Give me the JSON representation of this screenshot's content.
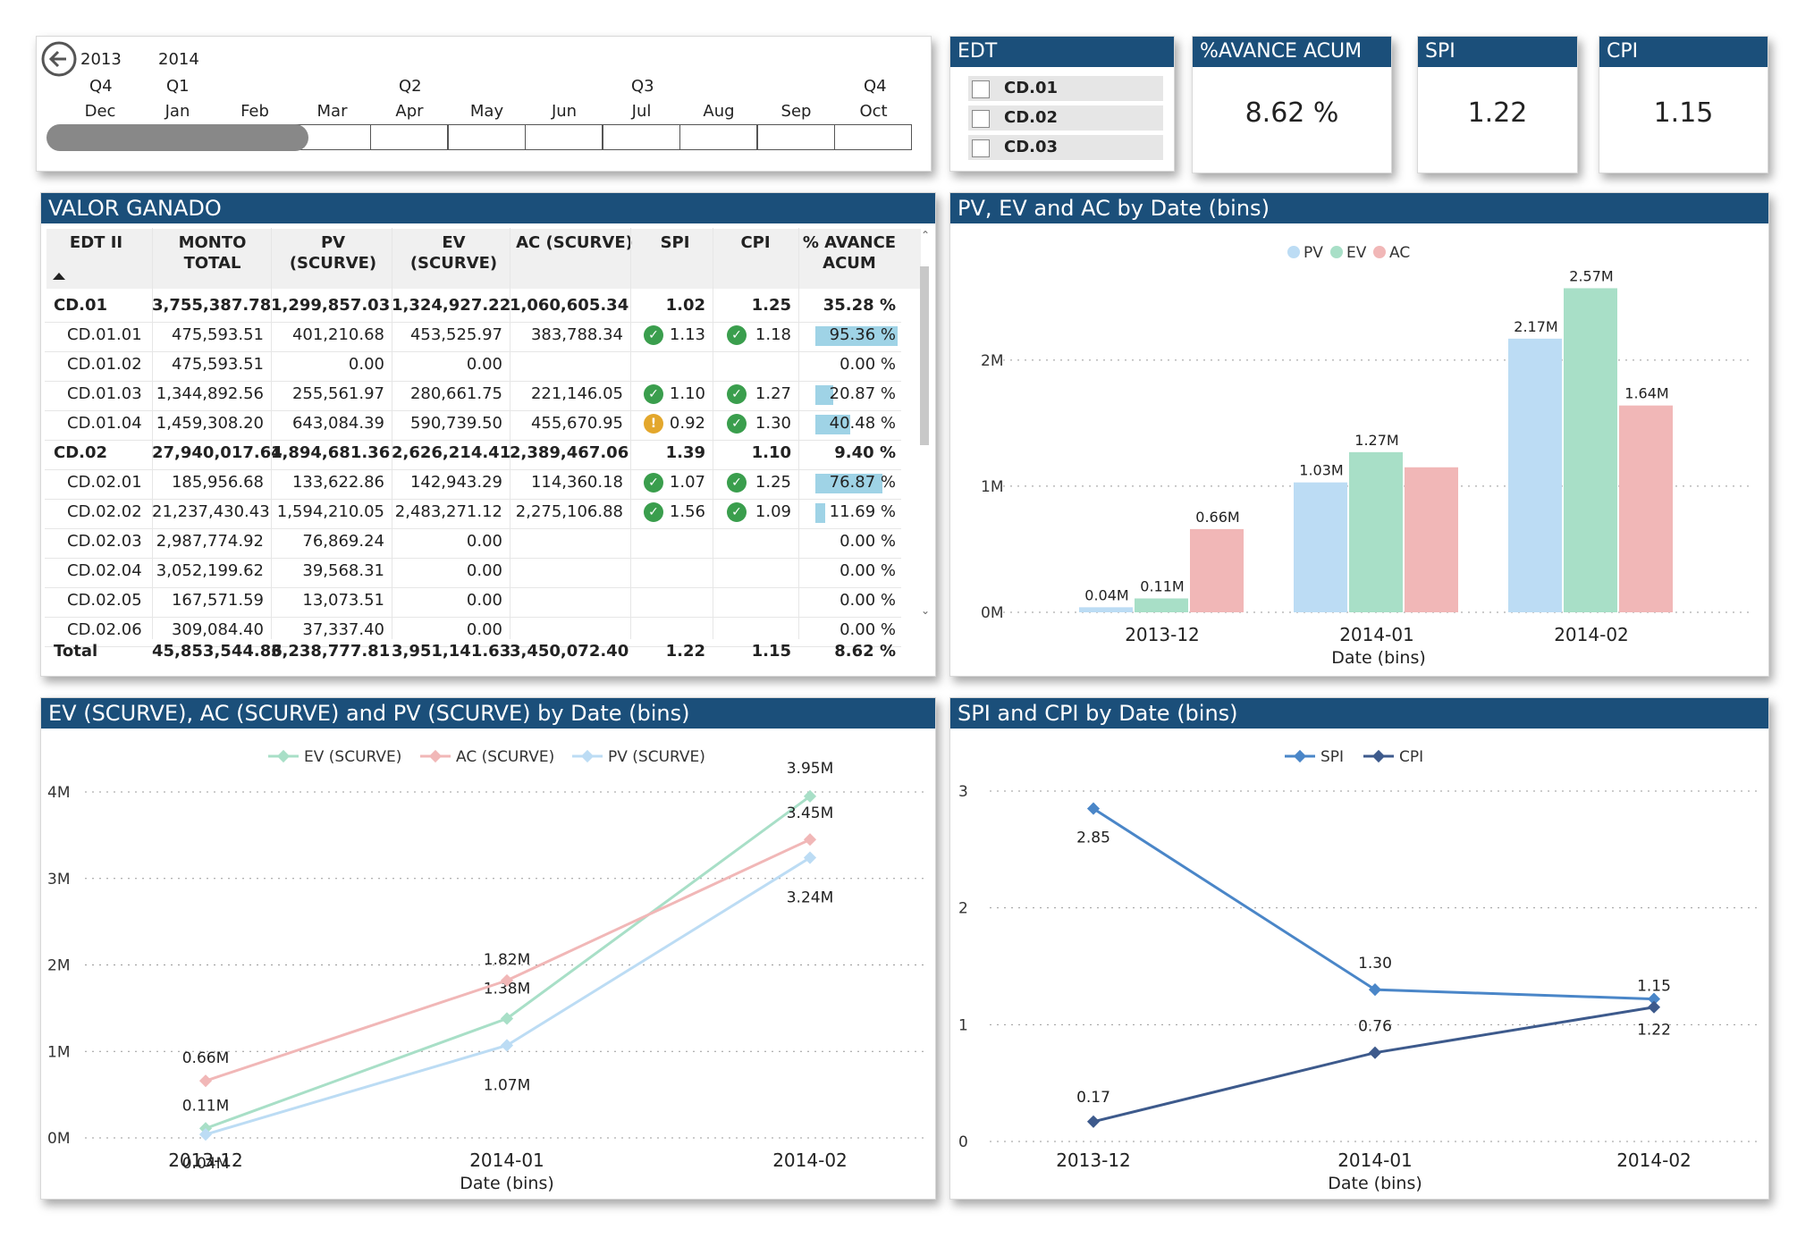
{
  "timeline": {
    "years": [
      "2013",
      "2014"
    ],
    "quarters": [
      "Q4",
      "Q1",
      "Q2",
      "Q3",
      "Q4"
    ],
    "months": [
      "Dec",
      "Jan",
      "Feb",
      "Mar",
      "Apr",
      "May",
      "Jun",
      "Jul",
      "Aug",
      "Sep",
      "Oct"
    ]
  },
  "edt": {
    "title": "EDT",
    "items": [
      "CD.01",
      "CD.02",
      "CD.03"
    ]
  },
  "kpis": {
    "avance": {
      "title": "%AVANCE ACUM",
      "value": "8.62 %"
    },
    "spi": {
      "title": "SPI",
      "value": "1.22"
    },
    "cpi": {
      "title": "CPI",
      "value": "1.15"
    }
  },
  "table": {
    "title": "VALOR GANADO",
    "headers": {
      "edt": "EDT II",
      "monto": "MONTO\nTOTAL",
      "pv": "PV\n(SCURVE)",
      "ev": "EV\n(SCURVE)",
      "ac": "AC (SCURVE)",
      "spi": "SPI",
      "cpi": "CPI",
      "avance": "% AVANCE\nACUM"
    },
    "rows": [
      {
        "edt": "CD.01",
        "monto": "3,755,387.78",
        "pv": "1,299,857.03",
        "ev": "1,324,927.22",
        "ac": "1,060,605.34",
        "spi": "1.02",
        "cpi": "1.25",
        "avance": "35.28 %",
        "bold": true,
        "indent": false,
        "spi_icon": "",
        "cpi_icon": "",
        "bar": 0
      },
      {
        "edt": "CD.01.01",
        "monto": "475,593.51",
        "pv": "401,210.68",
        "ev": "453,525.97",
        "ac": "383,788.34",
        "spi": "1.13",
        "cpi": "1.18",
        "avance": "95.36 %",
        "bold": false,
        "indent": true,
        "spi_icon": "check",
        "cpi_icon": "check",
        "bar": 0.9536
      },
      {
        "edt": "CD.01.02",
        "monto": "475,593.51",
        "pv": "0.00",
        "ev": "0.00",
        "ac": "",
        "spi": "",
        "cpi": "",
        "avance": "0.00 %",
        "bold": false,
        "indent": true,
        "spi_icon": "",
        "cpi_icon": "",
        "bar": 0
      },
      {
        "edt": "CD.01.03",
        "monto": "1,344,892.56",
        "pv": "255,561.97",
        "ev": "280,661.75",
        "ac": "221,146.05",
        "spi": "1.10",
        "cpi": "1.27",
        "avance": "20.87 %",
        "bold": false,
        "indent": true,
        "spi_icon": "check",
        "cpi_icon": "check",
        "bar": 0.2087
      },
      {
        "edt": "CD.01.04",
        "monto": "1,459,308.20",
        "pv": "643,084.39",
        "ev": "590,739.50",
        "ac": "455,670.95",
        "spi": "0.92",
        "cpi": "1.30",
        "avance": "40.48 %",
        "bold": false,
        "indent": true,
        "spi_icon": "warn",
        "cpi_icon": "check",
        "bar": 0.4048
      },
      {
        "edt": "CD.02",
        "monto": "27,940,017.64",
        "pv": "1,894,681.36",
        "ev": "2,626,214.41",
        "ac": "2,389,467.06",
        "spi": "1.39",
        "cpi": "1.10",
        "avance": "9.40 %",
        "bold": true,
        "indent": false,
        "spi_icon": "",
        "cpi_icon": "",
        "bar": 0
      },
      {
        "edt": "CD.02.01",
        "monto": "185,956.68",
        "pv": "133,622.86",
        "ev": "142,943.29",
        "ac": "114,360.18",
        "spi": "1.07",
        "cpi": "1.25",
        "avance": "76.87 %",
        "bold": false,
        "indent": true,
        "spi_icon": "check",
        "cpi_icon": "check",
        "bar": 0.7687
      },
      {
        "edt": "CD.02.02",
        "monto": "21,237,430.43",
        "pv": "1,594,210.05",
        "ev": "2,483,271.12",
        "ac": "2,275,106.88",
        "spi": "1.56",
        "cpi": "1.09",
        "avance": "11.69 %",
        "bold": false,
        "indent": true,
        "spi_icon": "check",
        "cpi_icon": "check",
        "bar": 0.1169
      },
      {
        "edt": "CD.02.03",
        "monto": "2,987,774.92",
        "pv": "76,869.24",
        "ev": "0.00",
        "ac": "",
        "spi": "",
        "cpi": "",
        "avance": "0.00 %",
        "bold": false,
        "indent": true,
        "spi_icon": "",
        "cpi_icon": "",
        "bar": 0
      },
      {
        "edt": "CD.02.04",
        "monto": "3,052,199.62",
        "pv": "39,568.31",
        "ev": "0.00",
        "ac": "",
        "spi": "",
        "cpi": "",
        "avance": "0.00 %",
        "bold": false,
        "indent": true,
        "spi_icon": "",
        "cpi_icon": "",
        "bar": 0
      },
      {
        "edt": "CD.02.05",
        "monto": "167,571.59",
        "pv": "13,073.51",
        "ev": "0.00",
        "ac": "",
        "spi": "",
        "cpi": "",
        "avance": "0.00 %",
        "bold": false,
        "indent": true,
        "spi_icon": "",
        "cpi_icon": "",
        "bar": 0
      },
      {
        "edt": "CD.02.06",
        "monto": "309,084.40",
        "pv": "37,337.40",
        "ev": "0.00",
        "ac": "",
        "spi": "",
        "cpi": "",
        "avance": "0.00 %",
        "bold": false,
        "indent": true,
        "spi_icon": "",
        "cpi_icon": "",
        "bar": 0
      }
    ],
    "total": {
      "edt": "Total",
      "monto": "45,853,544.86",
      "pv": "3,238,777.81",
      "ev": "3,951,141.63",
      "ac": "3,450,072.40",
      "spi": "1.22",
      "cpi": "1.15",
      "avance": "8.62 %"
    }
  },
  "chart_data": [
    {
      "type": "bar",
      "title": "PV, EV and AC by Date (bins)",
      "xlabel": "Date (bins)",
      "categories": [
        "2013-12",
        "2014-01",
        "2014-02"
      ],
      "series": [
        {
          "name": "PV",
          "color": "#bcdcf4",
          "values": [
            0.04,
            1.03,
            2.17
          ],
          "labels": [
            "0.04M",
            "1.03M",
            "2.17M"
          ]
        },
        {
          "name": "EV",
          "color": "#a8dfc7",
          "values": [
            0.11,
            1.27,
            2.57
          ],
          "labels": [
            "0.11M",
            "1.27M",
            "2.57M"
          ]
        },
        {
          "name": "AC",
          "color": "#f1b7b7",
          "values": [
            0.66,
            1.15,
            1.64
          ],
          "labels": [
            "0.66M",
            "",
            "1.64M"
          ]
        }
      ],
      "yticks": [
        "0M",
        "1M",
        "2M"
      ],
      "ylim": [
        0,
        2.8
      ],
      "legend": "top-center"
    },
    {
      "type": "line",
      "title": "EV (SCURVE), AC (SCURVE) and PV (SCURVE) by Date (bins)",
      "xlabel": "Date (bins)",
      "categories": [
        "2013-12",
        "2014-01",
        "2014-02"
      ],
      "series": [
        {
          "name": "EV (SCURVE)",
          "color": "#a8dfc7",
          "values": [
            0.11,
            1.38,
            3.95
          ],
          "labels": [
            "0.11M",
            "1.38M",
            "3.95M"
          ]
        },
        {
          "name": "AC (SCURVE)",
          "color": "#f1b7b7",
          "values": [
            0.66,
            1.82,
            3.45
          ],
          "labels": [
            "0.66M",
            "1.82M",
            "3.45M"
          ]
        },
        {
          "name": "PV (SCURVE)",
          "color": "#bcdcf4",
          "values": [
            0.04,
            1.07,
            3.24
          ],
          "labels": [
            "0.04M",
            "1.07M",
            "3.24M"
          ]
        }
      ],
      "yticks": [
        "0M",
        "1M",
        "2M",
        "3M",
        "4M"
      ],
      "ylim": [
        0,
        4
      ],
      "legend": "top-center"
    },
    {
      "type": "line",
      "title": "SPI and CPI by Date (bins)",
      "xlabel": "Date (bins)",
      "categories": [
        "2013-12",
        "2014-01",
        "2014-02"
      ],
      "series": [
        {
          "name": "SPI",
          "color": "#4a86c8",
          "values": [
            2.85,
            1.3,
            1.22
          ],
          "labels": [
            "2.85",
            "1.30",
            "1.22"
          ]
        },
        {
          "name": "CPI",
          "color": "#3d5a8c",
          "values": [
            0.17,
            0.76,
            1.15
          ],
          "labels": [
            "0.17",
            "0.76",
            "1.15"
          ]
        }
      ],
      "yticks": [
        "0",
        "1",
        "2",
        "3"
      ],
      "ylim": [
        0,
        3
      ],
      "legend": "top-center"
    }
  ]
}
